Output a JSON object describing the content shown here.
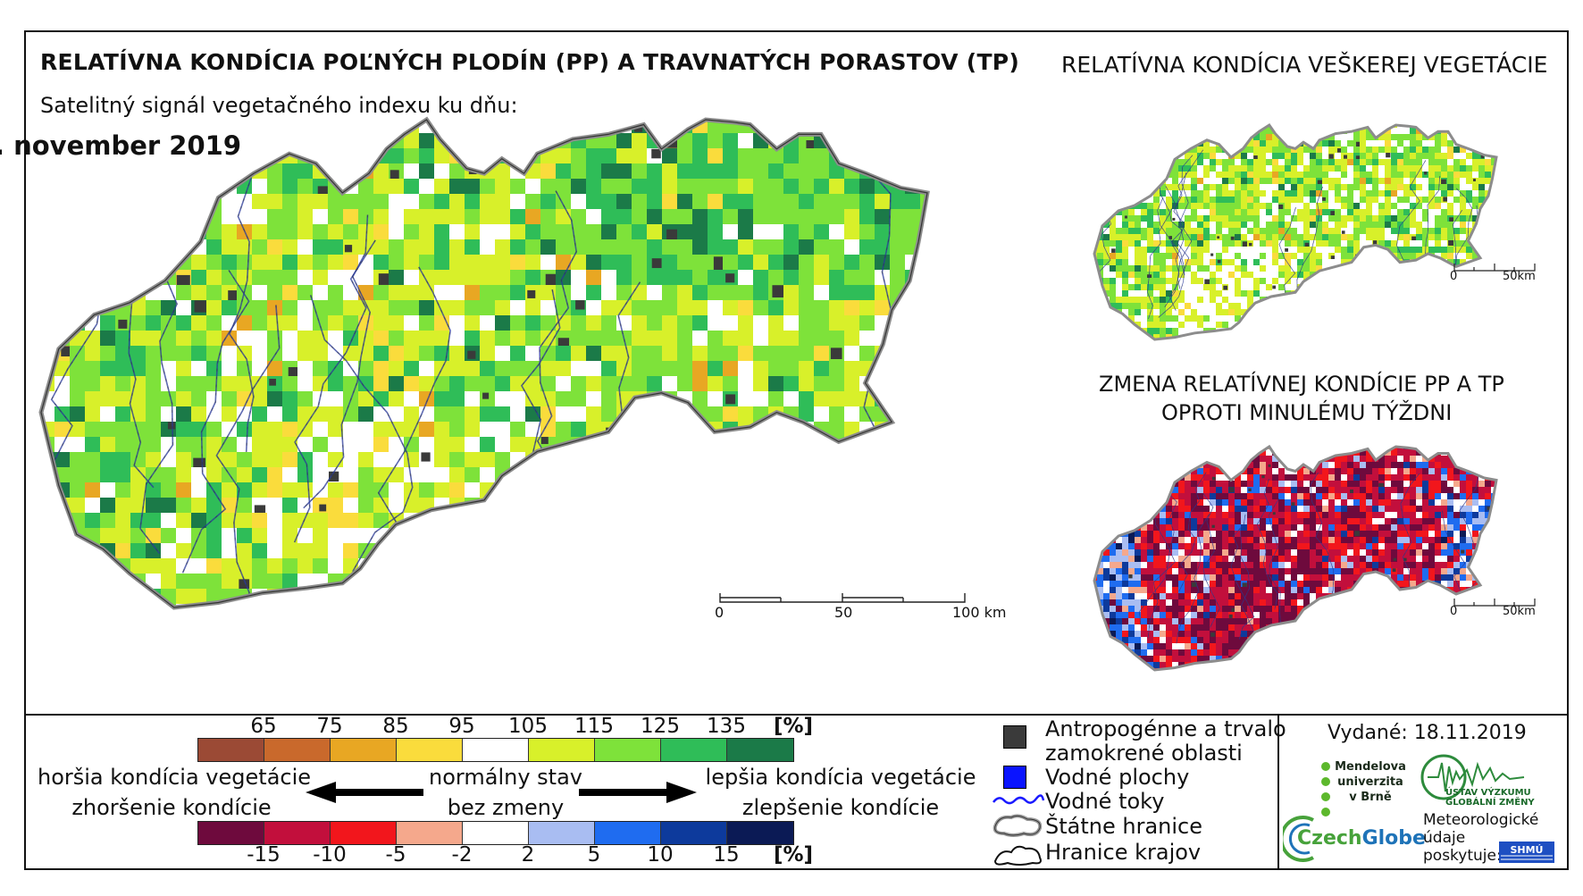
{
  "title_main": "RELATÍVNA KONDÍCIA POĽNÝCH PLODÍN (PP) A TRAVNATÝCH PORASTOV (TP)",
  "subtitle": "Satelitný signál vegetačného indexu ku dňu:",
  "date_shown": ". november 2019",
  "title_right": "RELATÍVNA KONDÍCIA VEŠKEREJ VEGETÁCIE",
  "title_change_line1": "ZMENA RELATÍVNEJ KONDÍCIE PP A TP",
  "title_change_line2": "OPROTI MINULÉMU TÝŽDNI",
  "main_scale": {
    "labels": [
      "0",
      "50",
      "100 km"
    ]
  },
  "small_scale_top": {
    "labels": [
      "0",
      "50km"
    ]
  },
  "small_scale_bottom": {
    "labels": [
      "0",
      "50km"
    ]
  },
  "condition_legend": {
    "values": [
      "65",
      "75",
      "85",
      "95",
      "105",
      "115",
      "125",
      "135"
    ],
    "unit": "[%]",
    "colors": [
      "#9b4a35",
      "#c9692c",
      "#e8a723",
      "#fadc3c",
      "#ffffff",
      "#d8f02a",
      "#7ee23a",
      "#2fbd58",
      "#1b7a48"
    ]
  },
  "change_legend": {
    "values": [
      "-15",
      "-10",
      "-5",
      "-2",
      "2",
      "5",
      "10",
      "15"
    ],
    "unit": "[%]",
    "colors": [
      "#6e0a3d",
      "#c20f3c",
      "#f2161c",
      "#f5a88c",
      "#ffffff",
      "#a9bdf2",
      "#1f6cf0",
      "#0d3a9c",
      "#0b1a55"
    ]
  },
  "arrow_texts": {
    "left_top": "horšia kondícia vegetácie",
    "left_bottom": "zhoršenie kondície",
    "mid_top": "normálny stav",
    "mid_bottom": "bez zmeny",
    "right_top": "lepšia kondícia vegetácie",
    "right_bottom": "zlepšenie kondície"
  },
  "map_legend": {
    "items": [
      {
        "icon": "anthropogenic-area-swatch",
        "label_line1": "Antropogénne a trvalo",
        "label_line2": "zamokrené oblasti",
        "color": "#3a3a3a"
      },
      {
        "icon": "water-body-swatch",
        "label_line1": "Vodné plochy",
        "color": "#0a14ff"
      },
      {
        "icon": "river-line-icon",
        "label_line1": "Vodné toky",
        "color": "#1a1aff"
      },
      {
        "icon": "state-border-icon",
        "label_line1": "Štátne hranice",
        "color": "#9a9a9a"
      },
      {
        "icon": "region-border-icon",
        "label_line1": "Hranice krajov",
        "color": "#111111"
      }
    ]
  },
  "issued": "Vydané: 18.11.2019",
  "logos": {
    "mendel": [
      "Mendelova",
      "univerzita",
      "v Brně"
    ],
    "ustav": [
      "ÚSTAV VÝZKUMU GLOBÁLNÍ ZMĚNY"
    ],
    "czechglobe_a": "Czech",
    "czechglobe_b": "Globe",
    "meteo": [
      "Meteorologické",
      "údaje",
      "poskytuje:"
    ],
    "shmu": "SHMÚ"
  }
}
